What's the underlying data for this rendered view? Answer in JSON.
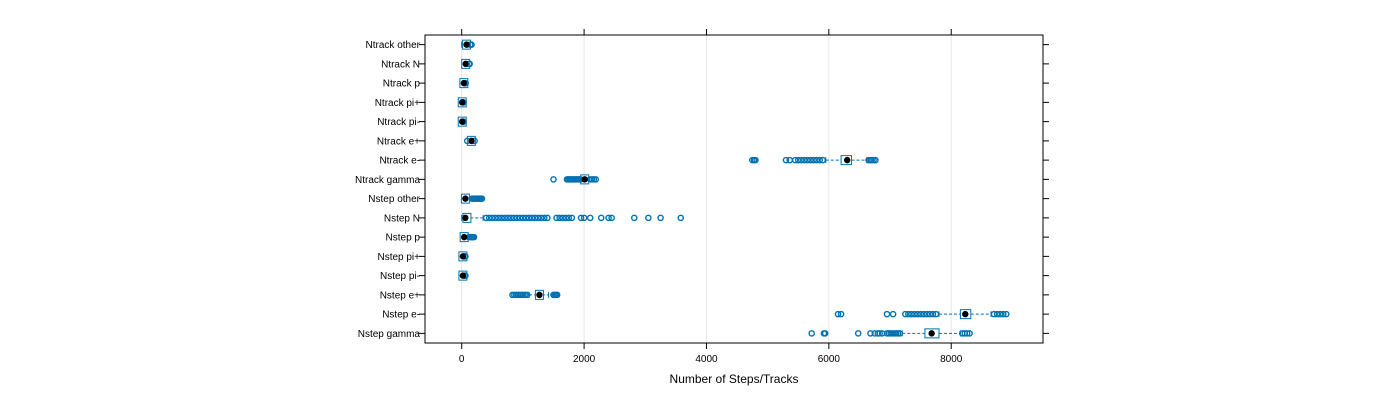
{
  "chart_data": {
    "type": "boxplot",
    "title": "",
    "xlabel": "Number of Steps/Tracks",
    "ylabel": "",
    "xlim": [
      -600,
      9500
    ],
    "xticks": [
      0,
      2000,
      4000,
      6000,
      8000
    ],
    "grid": "vertical",
    "colors": {
      "box": "#0072B2",
      "median": "#000000",
      "grid": "#e6e6e6",
      "frame": "#000000"
    },
    "categories": [
      "Ntrack other",
      "Ntrack N",
      "Ntrack p",
      "Ntrack pi+",
      "Ntrack pi-",
      "Ntrack e+",
      "Ntrack e-",
      "Ntrack gamma",
      "Nstep other",
      "Nstep N",
      "Nstep p",
      "Nstep pi+",
      "Nstep pi-",
      "Nstep e+",
      "Nstep e-",
      "Nstep gamma"
    ],
    "boxes": [
      {
        "label": "Ntrack other",
        "q1": 60,
        "median": 80,
        "q3": 100,
        "whisker_low": 0,
        "whisker_high": 130,
        "outliers": [
          140,
          150,
          160
        ]
      },
      {
        "label": "Ntrack N",
        "q1": 50,
        "median": 65,
        "q3": 80,
        "whisker_low": 10,
        "whisker_high": 110,
        "outliers": [
          120,
          130
        ]
      },
      {
        "label": "Ntrack p",
        "q1": 25,
        "median": 35,
        "q3": 45,
        "whisker_low": 5,
        "whisker_high": 55,
        "outliers": [
          60,
          65
        ]
      },
      {
        "label": "Ntrack pi+",
        "q1": 5,
        "median": 8,
        "q3": 12,
        "whisker_low": 0,
        "whisker_high": 20,
        "outliers": [
          25,
          30
        ]
      },
      {
        "label": "Ntrack pi-",
        "q1": 5,
        "median": 8,
        "q3": 12,
        "whisker_low": 0,
        "whisker_high": 20,
        "outliers": [
          25,
          30
        ]
      },
      {
        "label": "Ntrack e+",
        "q1": 140,
        "median": 160,
        "q3": 175,
        "whisker_low": 100,
        "whisker_high": 200,
        "outliers": [
          90,
          210
        ]
      },
      {
        "label": "Ntrack e-",
        "q1": 6200,
        "median": 6300,
        "q3": 6370,
        "whisker_low": 5950,
        "whisker_high": 6620,
        "outliers": [
          4750,
          4780,
          4800,
          5300,
          5360,
          5450,
          5500,
          5550,
          5600,
          5650,
          5700,
          5750,
          5800,
          5850,
          5900,
          6650,
          6680,
          6700,
          6730,
          6760
        ]
      },
      {
        "label": "Ntrack gamma",
        "q1": 1990,
        "median": 2010,
        "q3": 2030,
        "whisker_low": 1960,
        "whisker_high": 2060,
        "outliers": [
          1500,
          1720,
          1740,
          1760,
          1780,
          1800,
          1820,
          1840,
          1860,
          1880,
          1900,
          1920,
          1940,
          2100,
          2130,
          2160,
          2190
        ]
      },
      {
        "label": "Nstep other",
        "q1": 30,
        "median": 60,
        "q3": 90,
        "whisker_low": 0,
        "whisker_high": 150,
        "outliers": [
          170,
          190,
          210,
          230,
          250,
          270,
          290,
          310,
          330
        ]
      },
      {
        "label": "Nstep N",
        "q1": 30,
        "median": 60,
        "q3": 140,
        "whisker_low": 0,
        "whisker_high": 350,
        "outliers": [
          400,
          450,
          500,
          550,
          600,
          650,
          700,
          750,
          800,
          850,
          900,
          950,
          1000,
          1050,
          1100,
          1150,
          1200,
          1250,
          1300,
          1350,
          1400,
          1550,
          1600,
          1650,
          1700,
          1750,
          1800,
          1950,
          2000,
          2100,
          2280,
          2400,
          2450,
          2820,
          3050,
          3250,
          3580
        ]
      },
      {
        "label": "Nstep p",
        "q1": 20,
        "median": 40,
        "q3": 60,
        "whisker_low": 0,
        "whisker_high": 100,
        "outliers": [
          120,
          140,
          160,
          180,
          200
        ]
      },
      {
        "label": "Nstep pi+",
        "q1": 10,
        "median": 20,
        "q3": 30,
        "whisker_low": 0,
        "whisker_high": 45,
        "outliers": [
          50,
          55,
          60
        ]
      },
      {
        "label": "Nstep pi-",
        "q1": 10,
        "median": 20,
        "q3": 30,
        "whisker_low": 0,
        "whisker_high": 45,
        "outliers": [
          50,
          55,
          60
        ]
      },
      {
        "label": "Nstep e+",
        "q1": 1230,
        "median": 1270,
        "q3": 1310,
        "whisker_low": 1100,
        "whisker_high": 1420,
        "outliers": [
          830,
          860,
          890,
          920,
          950,
          980,
          1010,
          1040,
          1070,
          1500,
          1520,
          1540,
          1560
        ]
      },
      {
        "label": "Nstep e-",
        "q1": 8150,
        "median": 8230,
        "q3": 8320,
        "whisker_low": 7800,
        "whisker_high": 8650,
        "outliers": [
          6150,
          6200,
          6950,
          7050,
          7250,
          7300,
          7350,
          7400,
          7450,
          7500,
          7550,
          7600,
          7650,
          7700,
          7750,
          8700,
          8750,
          8800,
          8850,
          8900
        ]
      },
      {
        "label": "Nstep gamma",
        "q1": 7570,
        "median": 7680,
        "q3": 7800,
        "whisker_low": 7200,
        "whisker_high": 8150,
        "outliers": [
          5720,
          5920,
          5940,
          6480,
          6680,
          6750,
          6800,
          6830,
          6870,
          6950,
          6980,
          7010,
          7040,
          7070,
          7100,
          7130,
          7160,
          8180,
          8220,
          8260,
          8300
        ]
      }
    ]
  }
}
